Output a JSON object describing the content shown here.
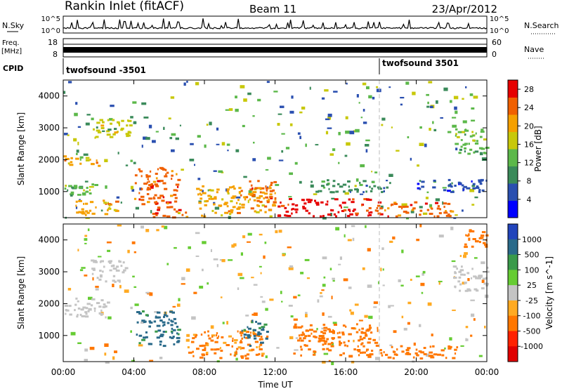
{
  "header": {
    "station": "Rankin Inlet (fitACF)",
    "beam": "Beam 11",
    "date": "23/Apr/2012"
  },
  "top_panels": {
    "nsky_label": "N.Sky",
    "nsky_ticks": [
      "10^5",
      "10^0"
    ],
    "nsearch_ticks": [
      "10^5",
      "10^0"
    ],
    "nsearch_label": "N.Search",
    "freq_label_1": "Freq.",
    "freq_label_2": "[MHz]",
    "freq_ticks": [
      "18",
      "8"
    ],
    "nave_ticks": [
      "60",
      "0"
    ],
    "nave_label": "Nave",
    "cpid_label": "CPID",
    "cpid_segments": [
      "twofsound -3501",
      "twofsound 3501"
    ]
  },
  "colors": {
    "power_scale": [
      "#0000ff",
      "#2a4fb0",
      "#3a8a5a",
      "#5cb84a",
      "#c8c80a",
      "#f5a000",
      "#f06000",
      "#e60000"
    ],
    "velocity_scale": [
      "#2244bb",
      "#2a6a8a",
      "#3a9a4a",
      "#66cc33",
      "#c4c4c4",
      "#ffaa22",
      "#ff7700",
      "#ff2200",
      "#e00000"
    ]
  },
  "chart_data": [
    {
      "type": "heatmap",
      "title": "Power",
      "ylabel": "Slant Range [km]",
      "yticks": [
        1000,
        2000,
        3000,
        4000
      ],
      "ylim": [
        180,
        4500
      ],
      "xlim": [
        0,
        24
      ],
      "colorbar": {
        "label": "Power [dB]",
        "ticks": [
          4,
          8,
          12,
          16,
          20,
          24,
          28
        ],
        "range": [
          0,
          30
        ]
      },
      "regions": [
        {
          "t0": 0.0,
          "t1": 2.0,
          "r0": 1800,
          "r1": 2150,
          "value": 21
        },
        {
          "t0": 0.0,
          "t1": 1.8,
          "r0": 900,
          "r1": 1300,
          "value": 13
        },
        {
          "t0": 0.5,
          "t1": 3.0,
          "r0": 250,
          "r1": 800,
          "value": 22
        },
        {
          "t0": 1.5,
          "t1": 4.0,
          "r0": 2700,
          "r1": 3300,
          "value": 15
        },
        {
          "t0": 4.0,
          "t1": 6.5,
          "r0": 600,
          "r1": 1800,
          "value": 24
        },
        {
          "t0": 5.0,
          "t1": 7.0,
          "r0": 200,
          "r1": 600,
          "value": 25
        },
        {
          "t0": 7.5,
          "t1": 12.0,
          "r0": 250,
          "r1": 1200,
          "value": 19
        },
        {
          "t0": 10.5,
          "t1": 12.0,
          "r0": 700,
          "r1": 1400,
          "value": 24
        },
        {
          "t0": 12.0,
          "t1": 17.5,
          "r0": 250,
          "r1": 800,
          "value": 27
        },
        {
          "t0": 14.0,
          "t1": 18.5,
          "r0": 1000,
          "r1": 1400,
          "value": 10
        },
        {
          "t0": 17.5,
          "t1": 22.0,
          "r0": 250,
          "r1": 700,
          "value": 26
        },
        {
          "t0": 20.0,
          "t1": 24.0,
          "r0": 1000,
          "r1": 1400,
          "value": 6
        },
        {
          "t0": 22.0,
          "t1": 24.0,
          "r0": 2200,
          "r1": 3000,
          "value": 12
        }
      ]
    },
    {
      "type": "heatmap",
      "title": "Velocity",
      "xlabel": "Time UT",
      "ylabel": "Slant Range [km]",
      "xticks": [
        "00:00",
        "04:00",
        "08:00",
        "12:00",
        "16:00",
        "20:00",
        "00:00"
      ],
      "yticks": [
        1000,
        2000,
        3000,
        4000
      ],
      "ylim": [
        180,
        4500
      ],
      "xlim": [
        0,
        24
      ],
      "colorbar": {
        "label": "Velocity [m s^-1]",
        "ticks": [
          1000,
          500,
          100,
          25,
          -25,
          -100,
          -500,
          -1000
        ]
      },
      "regions": [
        {
          "t0": 0.0,
          "t1": 2.5,
          "r0": 1600,
          "r1": 2200,
          "value": 0
        },
        {
          "t0": 1.5,
          "t1": 3.5,
          "r0": 2700,
          "r1": 3400,
          "value": 0
        },
        {
          "t0": 4.0,
          "t1": 6.5,
          "r0": 700,
          "r1": 1800,
          "value": 600
        },
        {
          "t0": 7.0,
          "t1": 11.5,
          "r0": 300,
          "r1": 1200,
          "value": -200
        },
        {
          "t0": 10.0,
          "t1": 11.5,
          "r0": 700,
          "r1": 1500,
          "value": 700
        },
        {
          "t0": 13.0,
          "t1": 18.0,
          "r0": 400,
          "r1": 1400,
          "value": -300
        },
        {
          "t0": 18.0,
          "t1": 22.5,
          "r0": 300,
          "r1": 700,
          "value": -400
        },
        {
          "t0": 22.0,
          "t1": 24.0,
          "r0": 2400,
          "r1": 3200,
          "value": 0
        },
        {
          "t0": 22.5,
          "t1": 24.0,
          "r0": 3800,
          "r1": 4400,
          "value": -300
        }
      ]
    }
  ]
}
